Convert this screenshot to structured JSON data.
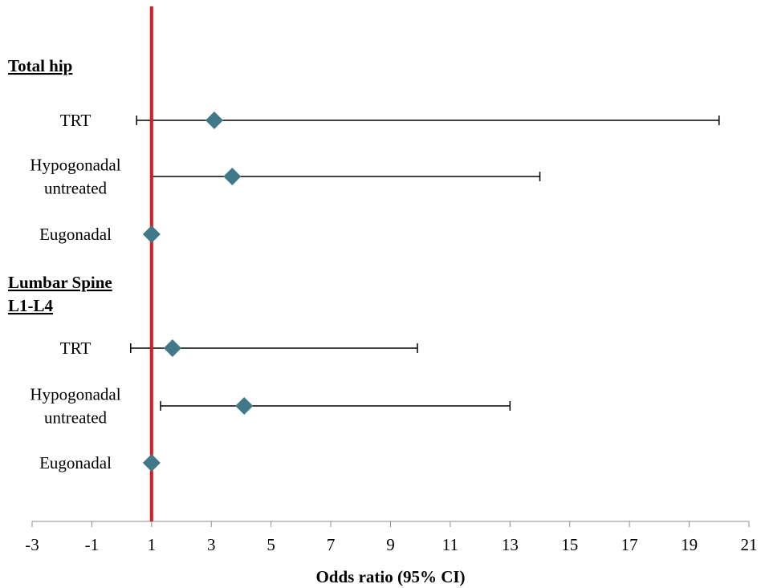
{
  "chart_data": {
    "type": "forest",
    "xlabel": "Odds ratio (95% CI)",
    "xlim": [
      -3,
      21
    ],
    "xticks": [
      -3,
      -1,
      1,
      3,
      5,
      7,
      9,
      11,
      13,
      15,
      17,
      19,
      21
    ],
    "reference_line": 1,
    "colors": {
      "marker": "#41788A",
      "reference": "#E01A1A",
      "whisker": "#000000"
    },
    "sections": [
      {
        "title_lines": [
          "Total hip"
        ],
        "rows": [
          {
            "label_lines": [
              "TRT"
            ],
            "or": 3.1,
            "ci_low": 0.5,
            "ci_high": 20.0
          },
          {
            "label_lines": [
              "Hypogonadal",
              "untreated"
            ],
            "or": 3.7,
            "ci_low": 1.0,
            "ci_high": 14.0
          },
          {
            "label_lines": [
              "Eugonadal"
            ],
            "or": 1.0,
            "ci_low": null,
            "ci_high": null
          }
        ]
      },
      {
        "title_lines": [
          "Lumbar Spine",
          "L1-L4"
        ],
        "rows": [
          {
            "label_lines": [
              "TRT"
            ],
            "or": 1.7,
            "ci_low": 0.3,
            "ci_high": 9.9
          },
          {
            "label_lines": [
              "Hypogonadal",
              "untreated"
            ],
            "or": 4.1,
            "ci_low": 1.3,
            "ci_high": 13.0
          },
          {
            "label_lines": [
              "Eugonadal"
            ],
            "or": 1.0,
            "ci_low": null,
            "ci_high": null
          }
        ]
      }
    ]
  }
}
